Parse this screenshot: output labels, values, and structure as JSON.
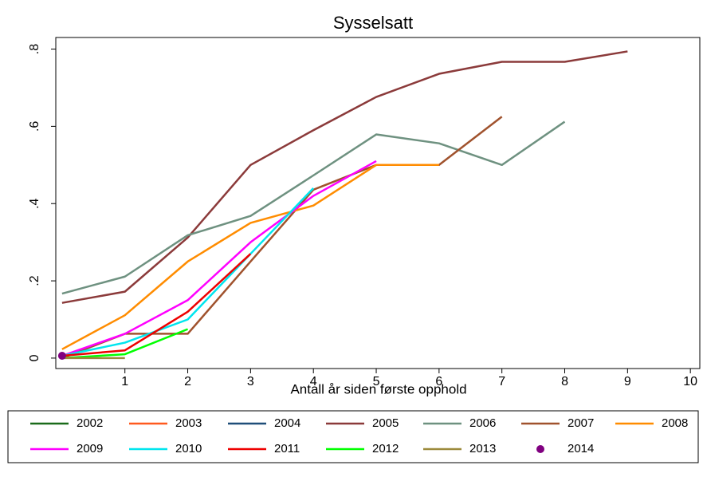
{
  "chart_data": {
    "type": "line",
    "title": "Sysselsatt",
    "x_label": "Antall år siden første opphold",
    "x": [
      0,
      1,
      2,
      3,
      4,
      5,
      6,
      7,
      8,
      9
    ],
    "xlim": [
      -0.1,
      10.15
    ],
    "xticks": [
      1,
      2,
      3,
      4,
      5,
      6,
      7,
      8,
      9,
      10
    ],
    "ylim": [
      -0.027,
      0.83
    ],
    "yticks": [
      0,
      {
        "value": 0.2,
        "label": ".2"
      },
      {
        "value": 0.4,
        "label": ".4"
      },
      {
        "value": 0.6,
        "label": ".6"
      },
      {
        "value": 0.8,
        "label": ".8"
      }
    ],
    "legend": "bottom",
    "series": [
      {
        "name": "2002",
        "color": "#1a6b1a",
        "values": [
          null,
          null,
          null,
          null,
          null,
          null,
          null,
          null,
          null,
          null
        ]
      },
      {
        "name": "2003",
        "color": "#ff5a1f",
        "values": [
          null,
          null,
          null,
          null,
          null,
          null,
          null,
          null,
          null,
          null
        ]
      },
      {
        "name": "2004",
        "color": "#1f4e79",
        "values": [
          null,
          null,
          null,
          null,
          null,
          null,
          null,
          null,
          null,
          null
        ]
      },
      {
        "name": "2005",
        "color": "#8b3a3a",
        "values": [
          0.143,
          0.172,
          0.312,
          0.5,
          0.59,
          0.676,
          0.736,
          0.767,
          0.767,
          0.794
        ]
      },
      {
        "name": "2006",
        "color": "#6e9180",
        "values": [
          0.167,
          0.211,
          0.318,
          0.368,
          0.473,
          0.579,
          0.556,
          0.5,
          0.612,
          null
        ]
      },
      {
        "name": "2007",
        "color": "#a0522d",
        "values": [
          0,
          0.063,
          0.063,
          0.25,
          0.436,
          0.5,
          0.5,
          0.625,
          null,
          null
        ]
      },
      {
        "name": "2008",
        "color": "#ff8c00",
        "values": [
          0.023,
          0.111,
          0.25,
          0.35,
          0.395,
          0.5,
          0.5,
          null,
          null,
          null
        ]
      },
      {
        "name": "2009",
        "color": "#ff00ff",
        "values": [
          0.006,
          0.063,
          0.15,
          0.3,
          0.42,
          0.51,
          null,
          null,
          null,
          null
        ]
      },
      {
        "name": "2010",
        "color": "#00e5ee",
        "values": [
          0.006,
          0.04,
          0.1,
          0.27,
          0.44,
          null,
          null,
          null,
          null,
          null
        ]
      },
      {
        "name": "2011",
        "color": "#ee0000",
        "values": [
          0.006,
          0.02,
          0.12,
          0.27,
          null,
          null,
          null,
          null,
          null,
          null
        ]
      },
      {
        "name": "2012",
        "color": "#00ff00",
        "values": [
          0,
          0.01,
          0.075,
          null,
          null,
          null,
          null,
          null,
          null,
          null
        ]
      },
      {
        "name": "2013",
        "color": "#9c8a3c",
        "values": [
          0,
          0,
          null,
          null,
          null,
          null,
          null,
          null,
          null,
          null
        ]
      },
      {
        "name": "2014",
        "color": "#800080",
        "marker": true,
        "values": [
          0.006,
          null,
          null,
          null,
          null,
          null,
          null,
          null,
          null,
          null
        ]
      }
    ]
  }
}
